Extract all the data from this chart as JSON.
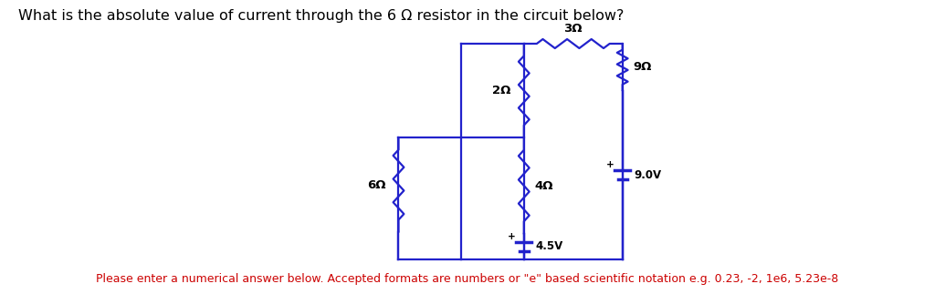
{
  "title": "What is the absolute value of current through the 6 Ω resistor in the circuit below?",
  "title_fontsize": 11.5,
  "title_color": "#000000",
  "footer_text": "Please enter a numerical answer below. Accepted formats are numbers or \"e\" based scientific notation e.g. 0.23, -2, 1e6, 5.23e-8",
  "footer_color": "#cc0000",
  "footer_fontsize": 9,
  "circuit_color": "#2222cc",
  "label_color": "#000000",
  "bg_color": "#ffffff",
  "xL": 5.05,
  "xM": 5.75,
  "xR": 6.85,
  "yT": 2.75,
  "yMH": 1.72,
  "yB": 0.38,
  "x6L": 4.35,
  "R2_label": "2Ω",
  "R3_label": "3Ω",
  "R4_label": "4Ω",
  "R6_label": "6Ω",
  "R9_label": "9Ω",
  "V45_label": "4.5V",
  "V9_label": "9.0V"
}
